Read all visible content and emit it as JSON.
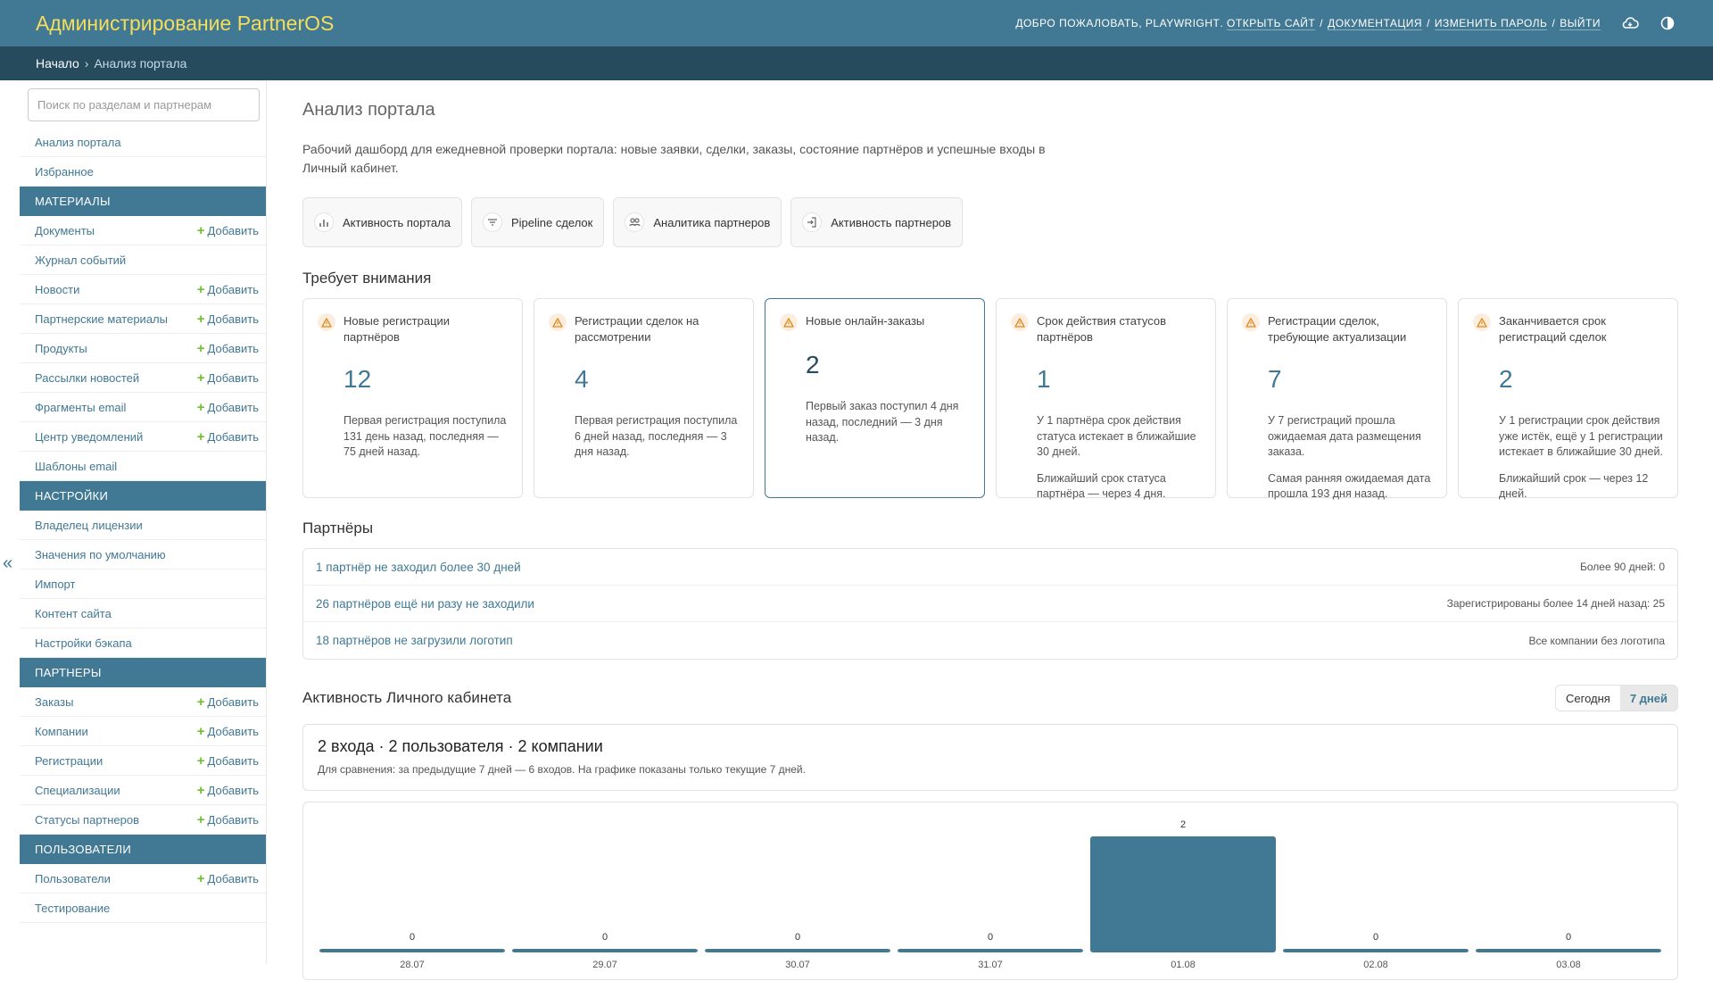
{
  "header": {
    "brand": "Администрирование PartnerOS",
    "welcome": "Добро пожаловать,",
    "username": "PLAYWRIGHT",
    "open_site": "ОТКРЫТЬ САЙТ",
    "docs": "ДОКУМЕНТАЦИЯ",
    "change_password": "ИЗМЕНИТЬ ПАРОЛЬ",
    "logout": "ВЫЙТИ",
    "icons": [
      "cloud-icon",
      "theme-toggle-icon"
    ]
  },
  "breadcrumbs": {
    "home": "Начало",
    "separator": "›",
    "current": "Анализ портала"
  },
  "sidebar": {
    "search_placeholder": "Поиск по разделам и партнерам",
    "collapse_glyph": "«",
    "top_items": [
      "Анализ портала",
      "Избранное"
    ],
    "add_label": "Добавить",
    "groups": [
      {
        "title": "Материалы",
        "items": [
          {
            "label": "Документы",
            "add": true
          },
          {
            "label": "Журнал событий",
            "add": false
          },
          {
            "label": "Новости",
            "add": true
          },
          {
            "label": "Партнерские материалы",
            "add": true
          },
          {
            "label": "Продукты",
            "add": true
          },
          {
            "label": "Рассылки новостей",
            "add": true
          },
          {
            "label": "Фрагменты email",
            "add": true
          },
          {
            "label": "Центр уведомлений",
            "add": true
          },
          {
            "label": "Шаблоны email",
            "add": false
          }
        ]
      },
      {
        "title": "Настройки",
        "items": [
          {
            "label": "Владелец лицензии",
            "add": false
          },
          {
            "label": "Значения по умолчанию",
            "add": false
          },
          {
            "label": "Импорт",
            "add": false
          },
          {
            "label": "Контент сайта",
            "add": false
          },
          {
            "label": "Настройки бэкапа",
            "add": false
          }
        ]
      },
      {
        "title": "Партнеры",
        "items": [
          {
            "label": "Заказы",
            "add": true
          },
          {
            "label": "Компании",
            "add": true
          },
          {
            "label": "Регистрации",
            "add": true
          },
          {
            "label": "Специализации",
            "add": true
          },
          {
            "label": "Статусы партнеров",
            "add": true
          }
        ]
      },
      {
        "title": "Пользователи",
        "items": [
          {
            "label": "Пользователи",
            "add": true
          },
          {
            "label": "Тестирование",
            "add": false
          }
        ]
      }
    ]
  },
  "main": {
    "title": "Анализ портала",
    "description": "Рабочий дашборд для ежедневной проверки портала: новые заявки, сделки, заказы, состояние партнёров и успешные входы в Личный кабинет.",
    "quick_links": [
      {
        "label": "Активность портала",
        "icon": "bar-chart-icon"
      },
      {
        "label": "Pipeline сделок",
        "icon": "filter-icon"
      },
      {
        "label": "Аналитика партнеров",
        "icon": "users-icon"
      },
      {
        "label": "Активность партнеров",
        "icon": "login-icon"
      }
    ],
    "attention_title": "Требует внимания",
    "cards": [
      {
        "label": "Новые регистрации партнёров",
        "value": "12",
        "text": "Первая регистрация поступила 131 день назад, последняя — 75 дней назад.",
        "text2": ""
      },
      {
        "label": "Регистрации сделок на рассмотрении",
        "value": "4",
        "text": "Первая регистрация поступила 6 дней назад, последняя — 3 дня назад.",
        "text2": ""
      },
      {
        "label": "Новые онлайн-заказы",
        "value": "2",
        "text": "Первый заказ поступил 4 дня назад, последний — 3 дня назад.",
        "text2": ""
      },
      {
        "label": "Срок действия статусов партнёров",
        "value": "1",
        "text": "У 1 партнёра срок действия статуса истекает в ближайшие 30 дней.",
        "text2": "Ближайший срок статуса партнёра — через 4 дня."
      },
      {
        "label": "Регистрации сделок, требующие актуализации",
        "value": "7",
        "text": "У 7 регистраций прошла ожидаемая дата размещения заказа.",
        "text2": "Самая ранняя ожидаемая дата прошла 193 дня назад."
      },
      {
        "label": "Заканчивается срок регистраций сделок",
        "value": "2",
        "text": "У 1 регистрации срок действия уже истёк, ещё у 1 регистрации истекает в ближайшие 30 дней.",
        "text2": "Ближайший срок — через 12 дней."
      }
    ],
    "partners_title": "Партнёры",
    "partners_rows": [
      {
        "left": "1 партнёр не заходил более 30 дней",
        "right": "Более 90 дней: 0"
      },
      {
        "left": "26 партнёров ещё ни разу не заходили",
        "right": "Зарегистрированы более 14 дней назад: 25"
      },
      {
        "left": "18 партнёров не загрузили логотип",
        "right": "Все компании без логотипа"
      }
    ],
    "activity_title": "Активность Личного кабинета",
    "range_options": [
      "Сегодня",
      "7 дней"
    ],
    "range_selected": "7 дней",
    "summary_main": "2 входа · 2 пользователя · 2 компании",
    "summary_sub": "Для сравнения: за предыдущие 7 дней — 6 входов. На графике показаны только текущие 7 дней."
  },
  "colors": {
    "primary": "#417893",
    "dark": "#264b5d",
    "brand_text": "#f5dd5d",
    "add_plus": "#70bf2b",
    "warn_bg": "#fbeede",
    "warn_icon": "#e08a1e"
  },
  "chart_data": {
    "type": "bar",
    "categories": [
      "28.07",
      "29.07",
      "30.07",
      "31.07",
      "01.08",
      "02.08",
      "03.08"
    ],
    "values": [
      0,
      0,
      0,
      0,
      2,
      0,
      0
    ],
    "ylim": [
      0,
      2
    ]
  }
}
